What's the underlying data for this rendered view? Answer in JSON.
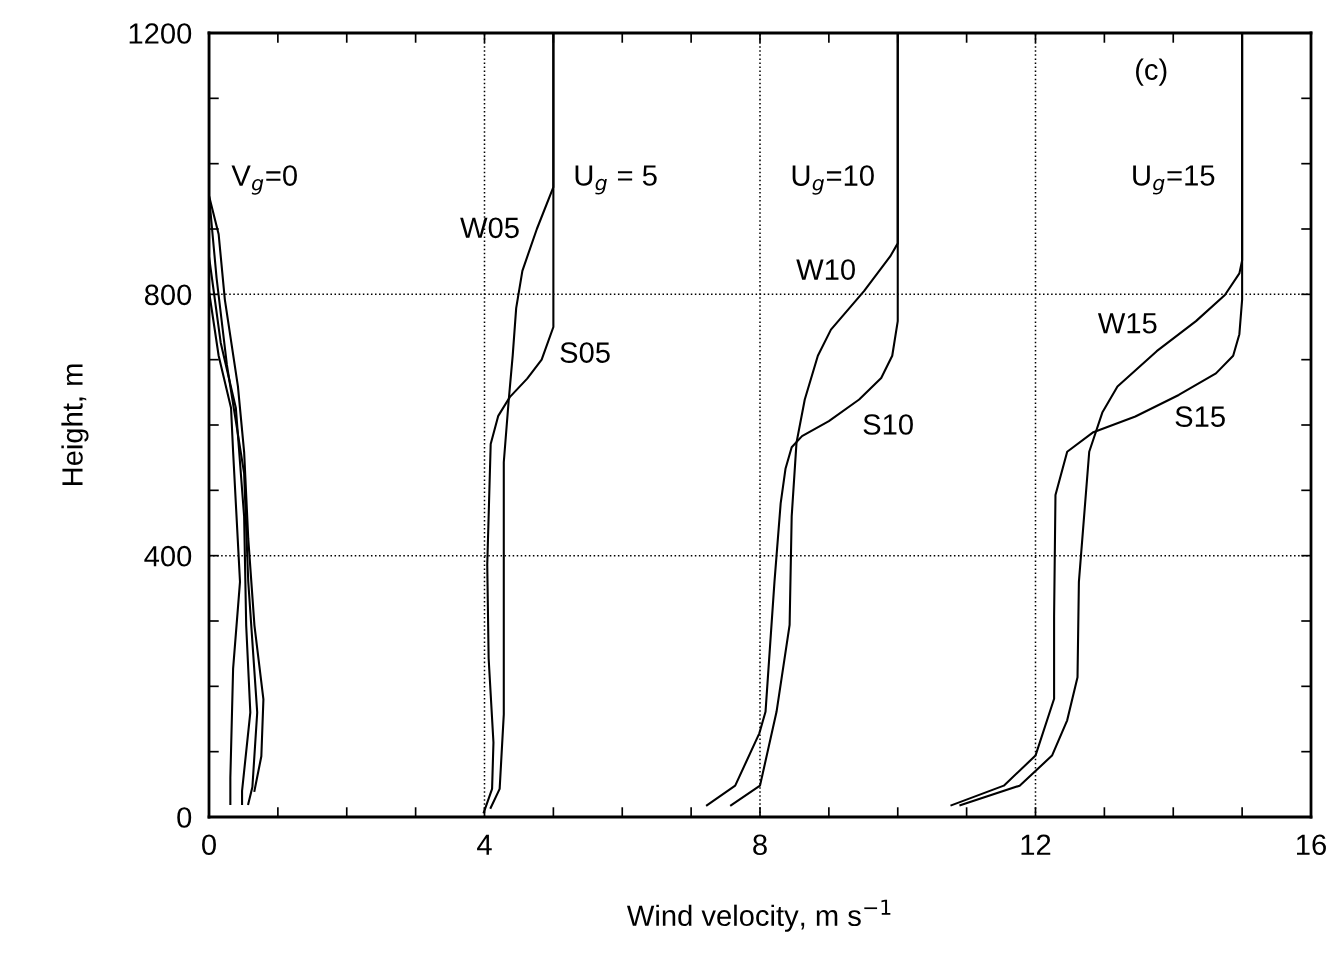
{
  "chart_data": {
    "type": "line",
    "xlabel": "Wind velocity, m s$^{−1}$",
    "ylabel": "Height, m",
    "xlim": [
      0,
      16
    ],
    "ylim": [
      0,
      1200
    ],
    "xticks": [
      0,
      {
        "value": 1,
        "label": null
      },
      {
        "value": 2,
        "label": null
      },
      {
        "value": 3,
        "label": null
      },
      4,
      {
        "value": 5,
        "label": null
      },
      {
        "value": 6,
        "label": null
      },
      {
        "value": 7,
        "label": null
      },
      8,
      {
        "value": 9,
        "label": null
      },
      {
        "value": 10,
        "label": null
      },
      {
        "value": 11,
        "label": null
      },
      12,
      {
        "value": 13,
        "label": null
      },
      {
        "value": 14,
        "label": null
      },
      {
        "value": 15,
        "label": null
      },
      16
    ],
    "yticks": [
      0,
      {
        "value": 100,
        "label": null
      },
      {
        "value": 200,
        "label": null
      },
      {
        "value": 300,
        "label": null
      },
      400,
      {
        "value": 500,
        "label": null
      },
      {
        "value": 600,
        "label": null
      },
      {
        "value": 700,
        "label": null
      },
      800,
      {
        "value": 900,
        "label": null
      },
      {
        "value": 1000,
        "label": null
      },
      {
        "value": 1100,
        "label": null
      },
      1200
    ],
    "grid": true,
    "marker": "none",
    "line_style": "solid",
    "series": [
      {
        "color": "#000000",
        "x": [
          0,
          0,
          0.14,
          0.23,
          0.42,
          0.51,
          0.57,
          0.66,
          0.79,
          0.76,
          0.66
        ],
        "values": [
          1200,
          951,
          892,
          792,
          659,
          559,
          426,
          293,
          180,
          93,
          40
        ]
      },
      {
        "color": "#000000",
        "x": [
          0,
          0,
          0.14,
          0.32,
          0.35,
          0.45,
          0.35,
          0.31,
          0.31
        ],
        "values": [
          1200,
          805,
          706,
          626,
          559,
          360,
          227,
          60,
          20
        ]
      },
      {
        "color": "#000000",
        "x": [
          0,
          0,
          0.17,
          0.39,
          0.51,
          0.54,
          0.6,
          0.48,
          0.48
        ],
        "values": [
          1200,
          858,
          726,
          626,
          460,
          293,
          160,
          40,
          20
        ]
      },
      {
        "color": "#000000",
        "x": [
          0,
          0,
          0.11,
          0.26,
          0.51,
          0.57,
          0.7,
          0.63,
          0.57
        ],
        "values": [
          1200,
          951,
          825,
          692,
          526,
          360,
          160,
          46,
          20
        ]
      },
      {
        "name": "S05",
        "color": "#000000",
        "x": [
          5,
          5,
          4.83,
          4.62,
          4.37,
          4.2,
          4.09,
          4.04,
          4.06,
          4.13,
          4.11,
          3.99
        ],
        "values": [
          1200,
          750,
          700,
          671,
          643,
          614,
          571,
          386,
          243,
          114,
          43,
          7
        ]
      },
      {
        "name": "W05",
        "color": "#000000",
        "x": [
          5,
          5,
          4.76,
          4.55,
          4.46,
          4.41,
          4.35,
          4.28,
          4.28,
          4.22,
          4.09
        ],
        "values": [
          1200,
          964,
          900,
          836,
          779,
          707,
          636,
          543,
          157,
          43,
          14
        ]
      },
      {
        "name": "S10",
        "color": "#000000",
        "x": [
          10,
          10,
          9.92,
          9.76,
          9.44,
          9.0,
          8.61,
          8.46,
          8.37,
          8.3,
          8.21,
          8.08,
          7.99,
          7.64,
          7.23
        ],
        "values": [
          1200,
          759,
          706,
          672,
          639,
          606,
          583,
          566,
          533,
          480,
          360,
          161,
          128,
          48,
          18
        ]
      },
      {
        "name": "W10",
        "color": "#000000",
        "x": [
          10,
          10,
          9.89,
          9.51,
          9.03,
          8.84,
          8.65,
          8.53,
          8.46,
          8.43,
          8.24,
          8.0,
          7.58
        ],
        "values": [
          1200,
          878,
          858,
          805,
          746,
          706,
          639,
          573,
          460,
          294,
          161,
          48,
          18
        ]
      },
      {
        "name": "S15",
        "color": "#000000",
        "x": [
          15,
          15,
          14.96,
          14.87,
          14.62,
          14.08,
          13.45,
          12.84,
          12.46,
          12.29,
          12.27,
          12.27,
          12.0,
          11.54,
          10.78
        ],
        "values": [
          1200,
          792,
          739,
          706,
          679,
          646,
          613,
          589,
          559,
          493,
          307,
          181,
          94,
          48,
          18
        ]
      },
      {
        "name": "W15",
        "color": "#000000",
        "x": [
          15,
          15,
          14.96,
          14.75,
          14.33,
          13.76,
          13.19,
          12.97,
          12.78,
          12.63,
          12.61,
          12.46,
          12.24,
          11.77,
          10.91
        ],
        "values": [
          1200,
          852,
          832,
          799,
          759,
          713,
          659,
          619,
          559,
          360,
          214,
          148,
          94,
          48,
          18
        ]
      }
    ],
    "annotations": [
      "(c)",
      "V$_{g}$=0",
      "U$_{g}$ = 5",
      "U$_{g}$=10",
      "U$_{g}$=15"
    ]
  }
}
